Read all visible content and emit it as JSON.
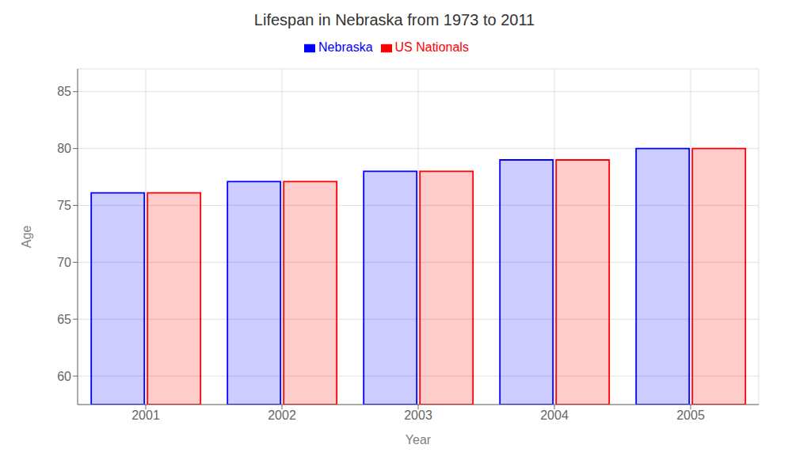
{
  "chart_data": {
    "type": "bar",
    "title": "Lifespan in Nebraska from 1973 to 2011",
    "x_label": "Year",
    "y_label": "Age",
    "categories": [
      "2001",
      "2002",
      "2003",
      "2004",
      "2005"
    ],
    "series": [
      {
        "name": "Nebraska",
        "color": "#0000ff",
        "values": [
          76.1,
          77.1,
          78.0,
          79.0,
          80.0
        ]
      },
      {
        "name": "US Nationals",
        "color": "#ff0000",
        "values": [
          76.1,
          77.1,
          78.0,
          79.0,
          80.0
        ]
      }
    ],
    "ylim": [
      57.5,
      87
    ],
    "yticks": [
      60,
      65,
      70,
      75,
      80,
      85
    ],
    "grid": true,
    "legend": "top"
  }
}
